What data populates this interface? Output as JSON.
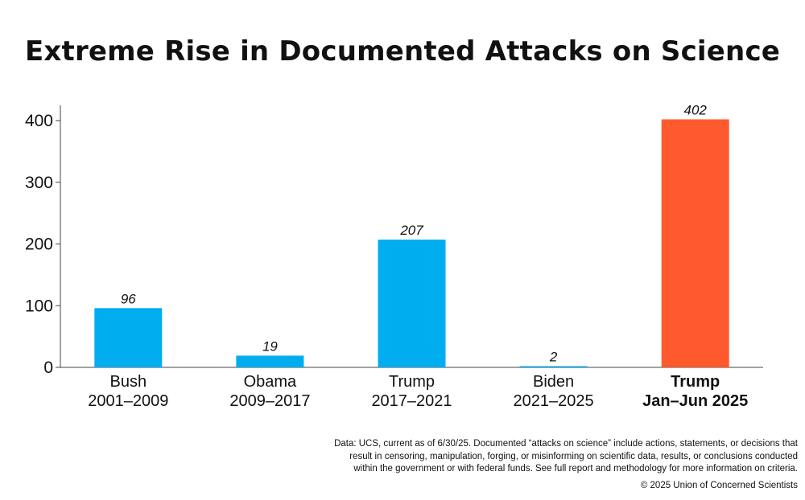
{
  "chart_data": {
    "type": "bar",
    "title": "Extreme Rise in Documented Attacks on Science",
    "categories": [
      [
        "Bush",
        "2001–2009"
      ],
      [
        "Obama",
        "2009–2017"
      ],
      [
        "Trump",
        "2017–2021"
      ],
      [
        "Biden",
        "2021–2025"
      ],
      [
        "Trump",
        "Jan–Jun 2025"
      ]
    ],
    "values": [
      96,
      19,
      207,
      2,
      402
    ],
    "data_labels": [
      "96",
      "19",
      "207",
      "2",
      "402"
    ],
    "bar_colors": [
      "#00aeef",
      "#00aeef",
      "#00aeef",
      "#00aeef",
      "#ff5a2e"
    ],
    "bold_categories": [
      false,
      false,
      false,
      false,
      true
    ],
    "yticks": [
      0,
      100,
      200,
      300,
      400
    ],
    "ylim": [
      0,
      425
    ],
    "grid": false,
    "legend": "none"
  },
  "footer": {
    "note_lines": [
      "Data: UCS, current as of 6/30/25. Documented “attacks on science” include actions, statements, or decisions that",
      "result in censoring, manipulation, forging, or misinforming on scientific data, results, or conclusions conducted",
      "within the government or with federal funds. See full report and methodology for more information on criteria."
    ],
    "copyright": "© 2025 Union of Concerned Scientists"
  }
}
